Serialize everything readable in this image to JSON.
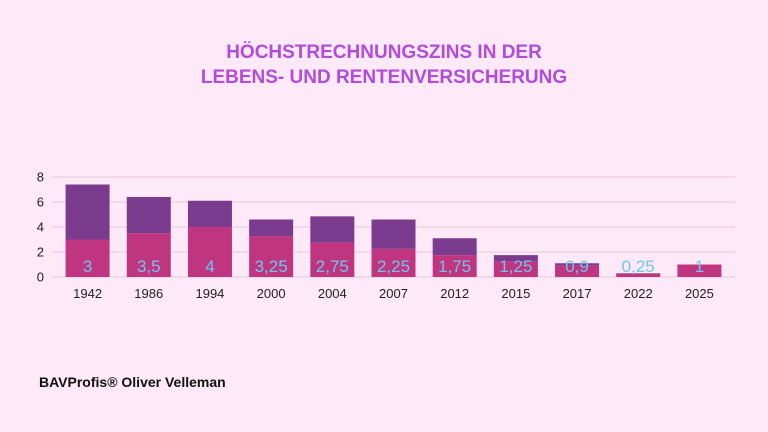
{
  "title_line1": "HÖCHSTRECHNUNGSZINS IN DER",
  "title_line2": "LEBENS- UND RENTENVERSICHERUNG",
  "footer": "BAVProfis® Oliver Velleman",
  "colors": {
    "bar_top": "#7b3b8f",
    "bar_bottom": "#c0357f",
    "label": "#6ec6f0",
    "grid": "#e6c9dc",
    "axis_text": "#222222"
  },
  "chart_data": {
    "type": "bar",
    "stacked": true,
    "categories": [
      "1942",
      "1986",
      "1994",
      "2000",
      "2004",
      "2007",
      "2012",
      "2015",
      "2017",
      "2022",
      "2025"
    ],
    "series": [
      {
        "values": [
          3,
          3.5,
          4,
          3.25,
          2.75,
          2.25,
          1.75,
          1.25,
          0.9,
          0.25,
          1
        ]
      },
      {
        "values": [
          4.4,
          2.9,
          2.1,
          1.35,
          2.1,
          2.35,
          1.35,
          0.5,
          0.2,
          0.05,
          0
        ]
      }
    ],
    "data_labels": [
      "3",
      "3,5",
      "4",
      "3,25",
      "2,75",
      "2,25",
      "1,75",
      "1,25",
      "0,9",
      "0,25",
      "1"
    ],
    "yticks": [
      "0",
      "2",
      "4",
      "6",
      "8"
    ],
    "ylim": [
      0,
      8
    ],
    "grid": true
  }
}
